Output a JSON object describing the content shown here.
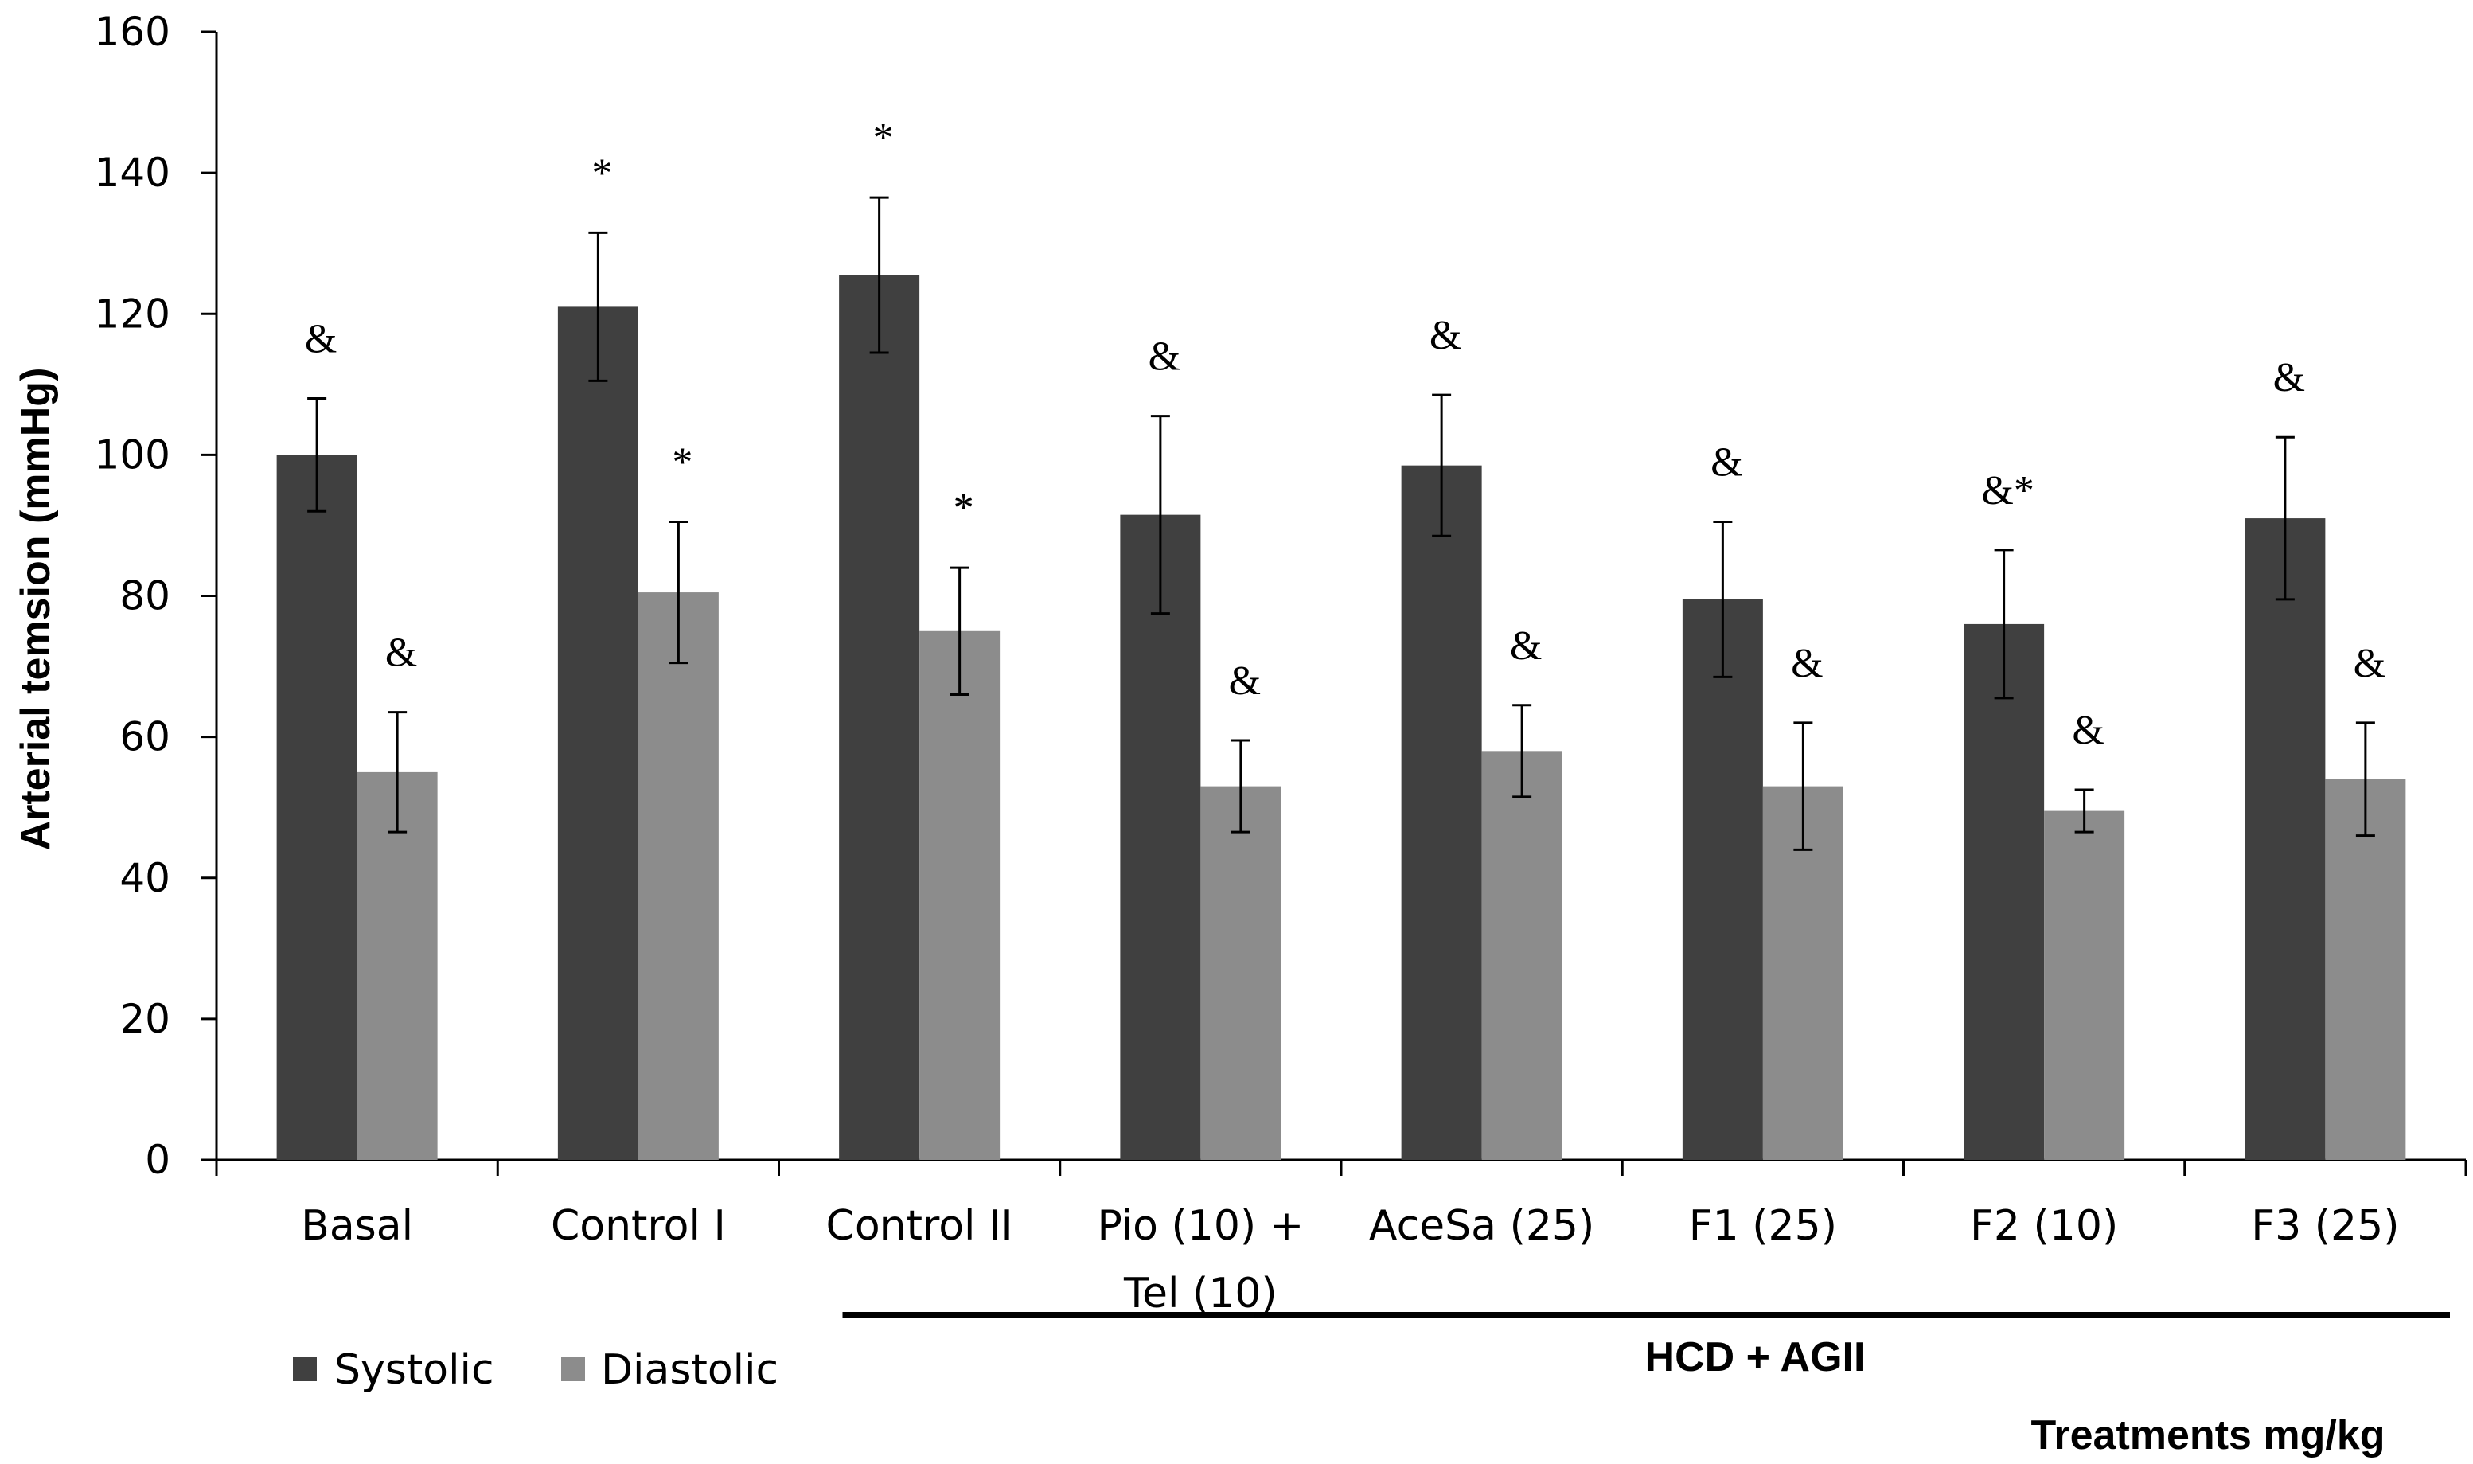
{
  "chart_data": {
    "type": "bar",
    "ylabel": "Arterial temsion (mmHg)",
    "xlabel": "Treatments mg/kg",
    "ylim": [
      0,
      160
    ],
    "yticks": [
      0,
      20,
      40,
      60,
      80,
      100,
      120,
      140,
      160
    ],
    "categories": [
      [
        "Basal"
      ],
      [
        "Control I"
      ],
      [
        "Control II"
      ],
      [
        "Pio (10) +",
        "Tel (10)"
      ],
      [
        "AceSa (25)"
      ],
      [
        "F1 (25)"
      ],
      [
        "F2 (10)"
      ],
      [
        "F3 (25)"
      ]
    ],
    "series": [
      {
        "name": "Systolic",
        "color": "#404040",
        "values": [
          100,
          121,
          125.5,
          91.5,
          98.5,
          79.5,
          76,
          91
        ],
        "errors": [
          8,
          10.5,
          11,
          14,
          10,
          11,
          10.5,
          11.5
        ],
        "annotations": [
          "&",
          "*",
          "*",
          "&",
          "&",
          "&",
          "&*",
          "&"
        ]
      },
      {
        "name": "Diastolic",
        "color": "#8c8c8c",
        "values": [
          55,
          80.5,
          75,
          53,
          58,
          53,
          49.5,
          54
        ],
        "errors": [
          8.5,
          10,
          9,
          6.5,
          6.5,
          9,
          3,
          8
        ],
        "annotations": [
          "&",
          "*",
          "*",
          "&",
          "&",
          "&",
          "&",
          "&"
        ]
      }
    ],
    "group_label": "HCD + AGII",
    "group_span": [
      2,
      7
    ],
    "legend": "bottom-left"
  }
}
